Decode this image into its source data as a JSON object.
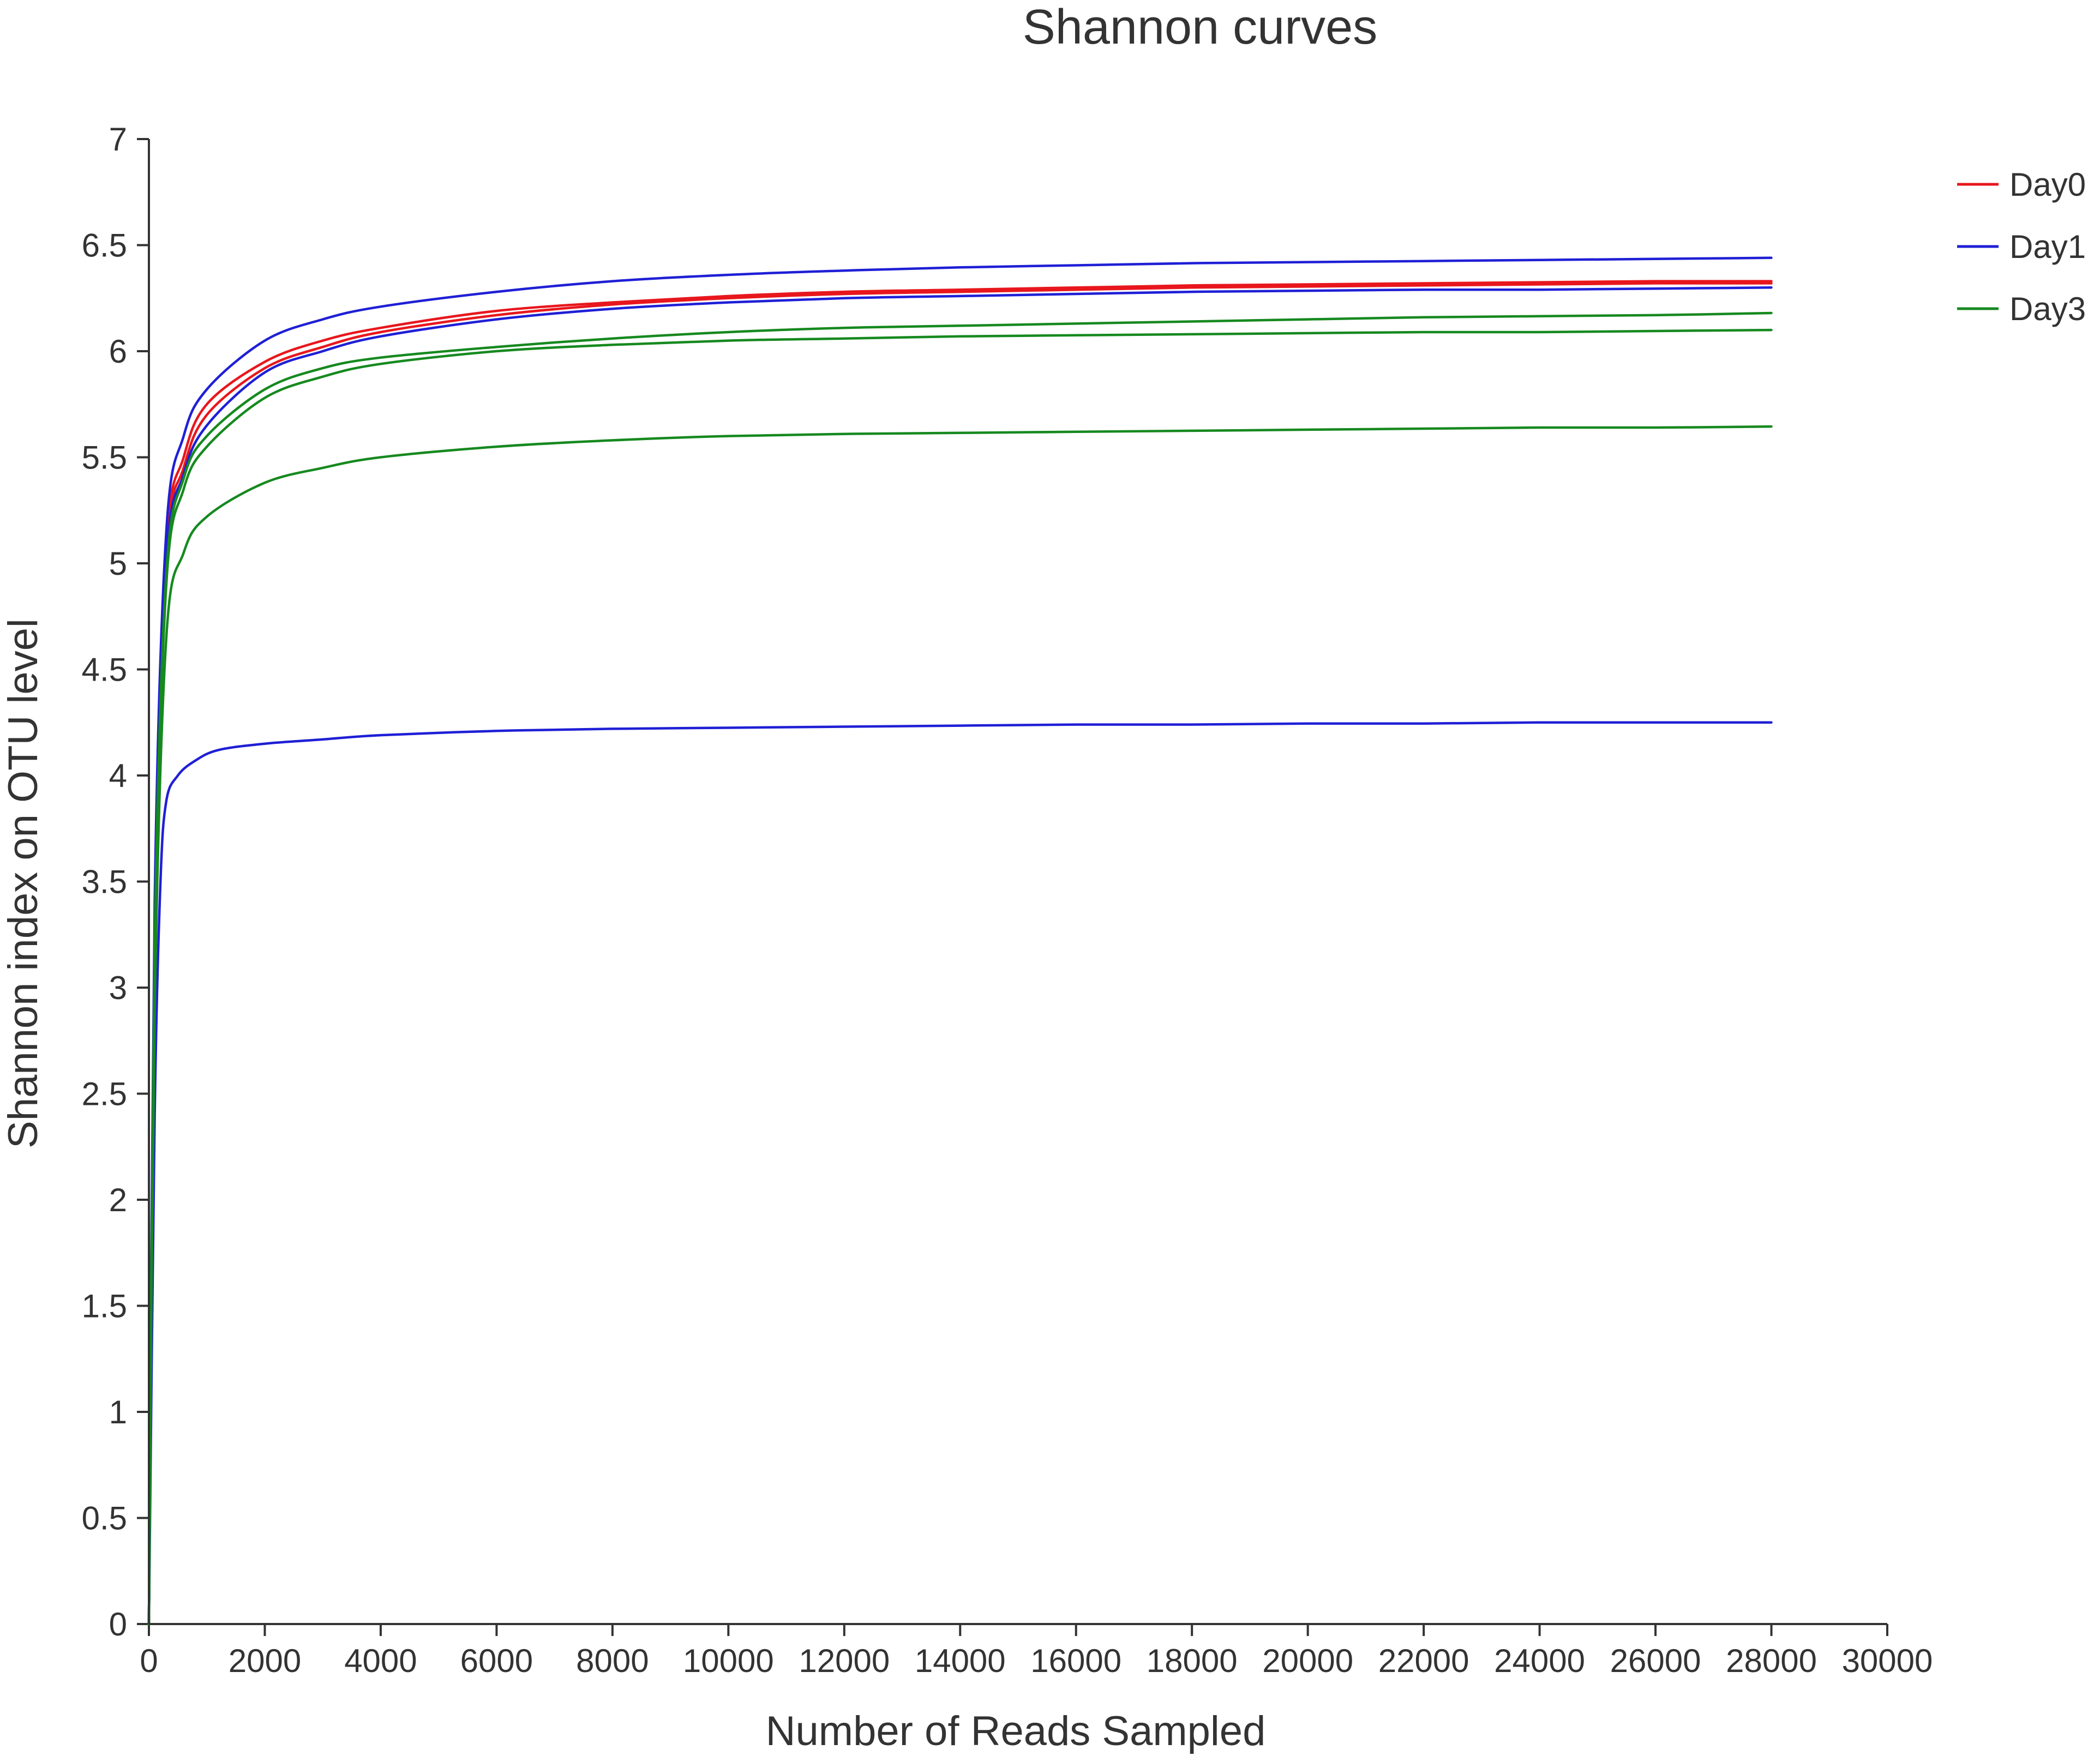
{
  "chart_data": {
    "type": "line",
    "title": "Shannon curves",
    "xlabel": "Number of Reads Sampled",
    "ylabel": "Shannon index on OTU level",
    "xlim": [
      0,
      30000
    ],
    "ylim": [
      0,
      7
    ],
    "x_ticks": [
      "0",
      "2000",
      "4000",
      "6000",
      "8000",
      "10000",
      "12000",
      "14000",
      "16000",
      "18000",
      "20000",
      "22000",
      "24000",
      "26000",
      "28000",
      "30000"
    ],
    "y_ticks": [
      "0",
      "0.5",
      "1",
      "1.5",
      "2",
      "2.5",
      "3",
      "3.5",
      "4",
      "4.5",
      "5",
      "5.5",
      "6",
      "6.5",
      "7"
    ],
    "grid": false,
    "legend_position": "top-right",
    "groups": [
      {
        "name": "Day0",
        "color": "#e8171d"
      },
      {
        "name": "Day1",
        "color": "#1f1fd6"
      },
      {
        "name": "Day3",
        "color": "#16891f"
      }
    ],
    "series": [
      {
        "group": "Day0",
        "x": [
          0,
          100,
          300,
          600,
          1000,
          2000,
          3000,
          4000,
          6000,
          8000,
          10000,
          12000,
          14000,
          16000,
          18000,
          20000,
          22000,
          24000,
          26000,
          28000
        ],
        "y": [
          0,
          3.3,
          5.05,
          5.45,
          5.7,
          5.92,
          6.02,
          6.09,
          6.17,
          6.22,
          6.25,
          6.27,
          6.28,
          6.29,
          6.3,
          6.305,
          6.31,
          6.315,
          6.32,
          6.32
        ]
      },
      {
        "group": "Day0",
        "x": [
          0,
          100,
          300,
          600,
          1000,
          2000,
          3000,
          4000,
          6000,
          8000,
          10000,
          12000,
          14000,
          16000,
          18000,
          20000,
          22000,
          24000,
          26000,
          28000
        ],
        "y": [
          0,
          3.3,
          5.08,
          5.5,
          5.75,
          5.95,
          6.05,
          6.11,
          6.19,
          6.23,
          6.26,
          6.28,
          6.29,
          6.3,
          6.31,
          6.315,
          6.32,
          6.325,
          6.33,
          6.33
        ]
      },
      {
        "group": "Day1",
        "x": [
          0,
          100,
          300,
          600,
          1000,
          2000,
          3000,
          4000,
          6000,
          8000,
          10000,
          12000,
          14000,
          16000,
          18000,
          20000,
          22000,
          24000,
          26000,
          28000
        ],
        "y": [
          0,
          3.4,
          5.15,
          5.6,
          5.82,
          6.05,
          6.15,
          6.21,
          6.28,
          6.33,
          6.36,
          6.38,
          6.395,
          6.405,
          6.415,
          6.42,
          6.425,
          6.43,
          6.435,
          6.44
        ]
      },
      {
        "group": "Day1",
        "x": [
          0,
          100,
          300,
          600,
          1000,
          2000,
          3000,
          4000,
          6000,
          8000,
          10000,
          12000,
          14000,
          16000,
          18000,
          20000,
          22000,
          24000,
          26000,
          28000
        ],
        "y": [
          0,
          3.2,
          5.0,
          5.42,
          5.65,
          5.9,
          6.0,
          6.07,
          6.15,
          6.2,
          6.23,
          6.25,
          6.26,
          6.27,
          6.28,
          6.285,
          6.29,
          6.29,
          6.295,
          6.3
        ]
      },
      {
        "group": "Day1",
        "x": [
          0,
          100,
          200,
          300,
          500,
          800,
          1200,
          2000,
          3000,
          4000,
          6000,
          8000,
          10000,
          12000,
          14000,
          16000,
          18000,
          20000,
          22000,
          24000,
          26000,
          28000
        ],
        "y": [
          0,
          2.4,
          3.5,
          3.88,
          4.0,
          4.07,
          4.12,
          4.15,
          4.17,
          4.19,
          4.21,
          4.22,
          4.225,
          4.23,
          4.235,
          4.24,
          4.24,
          4.245,
          4.245,
          4.25,
          4.25,
          4.25
        ]
      },
      {
        "group": "Day3",
        "x": [
          0,
          100,
          300,
          600,
          1000,
          2000,
          3000,
          4000,
          6000,
          8000,
          10000,
          12000,
          14000,
          16000,
          18000,
          20000,
          22000,
          24000,
          26000,
          28000
        ],
        "y": [
          0,
          3.2,
          4.95,
          5.4,
          5.6,
          5.82,
          5.92,
          5.97,
          6.02,
          6.06,
          6.09,
          6.11,
          6.12,
          6.13,
          6.14,
          6.15,
          6.16,
          6.165,
          6.17,
          6.18
        ]
      },
      {
        "group": "Day3",
        "x": [
          0,
          100,
          300,
          600,
          1000,
          2000,
          3000,
          4000,
          6000,
          8000,
          10000,
          12000,
          14000,
          16000,
          18000,
          20000,
          22000,
          24000,
          26000,
          28000
        ],
        "y": [
          0,
          3.1,
          4.9,
          5.35,
          5.55,
          5.78,
          5.88,
          5.94,
          6.0,
          6.03,
          6.05,
          6.06,
          6.07,
          6.075,
          6.08,
          6.085,
          6.09,
          6.09,
          6.095,
          6.1
        ]
      },
      {
        "group": "Day3",
        "x": [
          0,
          100,
          300,
          600,
          1000,
          2000,
          3000,
          4000,
          6000,
          8000,
          10000,
          12000,
          14000,
          16000,
          18000,
          20000,
          22000,
          24000,
          26000,
          28000
        ],
        "y": [
          0,
          2.9,
          4.65,
          5.05,
          5.22,
          5.38,
          5.45,
          5.5,
          5.55,
          5.58,
          5.6,
          5.61,
          5.615,
          5.62,
          5.625,
          5.63,
          5.635,
          5.64,
          5.64,
          5.645
        ]
      }
    ]
  }
}
